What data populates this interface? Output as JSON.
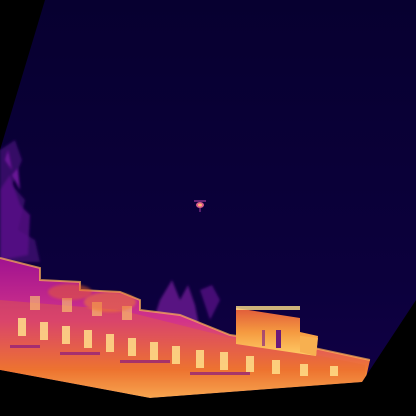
{
  "image": {
    "kind": "thermal-camera-frame",
    "palette": {
      "border": "#000000",
      "sky": "#0a0038",
      "sky_deep": "#06002a",
      "cool_structure": "#4a0a78",
      "warm": "#b0139a",
      "hot": "#f06a2a",
      "hottest": "#ffe08a"
    },
    "objects": [
      "sky",
      "drone",
      "trees",
      "apartment-building",
      "rooftop-structure"
    ]
  }
}
